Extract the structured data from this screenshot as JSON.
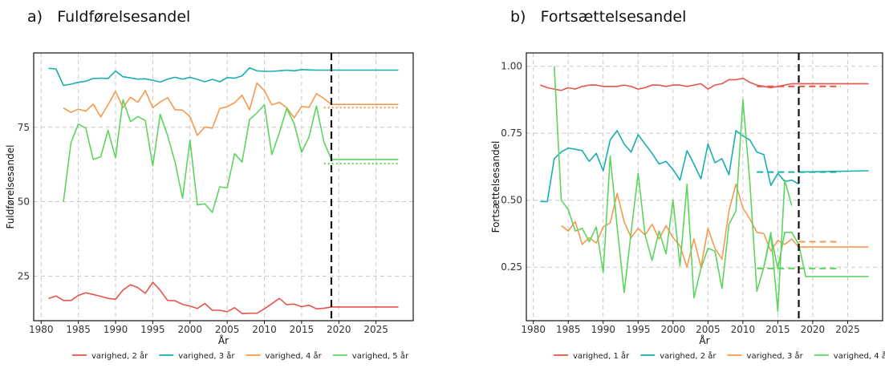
{
  "panels": {
    "a": {
      "label": "a)",
      "title": "Fuldførelsesandel"
    },
    "b": {
      "label": "b)",
      "title": "Fortsættelsesandel"
    }
  },
  "colors": {
    "red": "#e8534a",
    "teal": "#19aeb0",
    "orange": "#f59a4e",
    "green": "#5ed460",
    "grid": "#c8c8c8",
    "frame": "#111111"
  },
  "chart_data": [
    {
      "type": "line",
      "xlabel": "År",
      "ylabel": "Fuldførelsesandel",
      "xlim": [
        1979,
        2030
      ],
      "ylim": [
        10,
        100
      ],
      "xticks": [
        1980,
        1985,
        1990,
        1995,
        2000,
        2005,
        2010,
        2015,
        2020,
        2025
      ],
      "yticks": [
        25,
        50,
        75
      ],
      "ytick_labels": [
        "25",
        "50",
        "75"
      ],
      "vline_x": 2019,
      "series": [
        {
          "name": "varighed, 2 år",
          "color": "#e8534a",
          "x": [
            1981,
            1982,
            1983,
            1984,
            1985,
            1986,
            1987,
            1988,
            1989,
            1990,
            1991,
            1992,
            1993,
            1994,
            1995,
            1996,
            1997,
            1998,
            1999,
            2000,
            2001,
            2002,
            2003,
            2004,
            2005,
            2006,
            2007,
            2008,
            2009,
            2010,
            2011,
            2012,
            2013,
            2014,
            2015,
            2016,
            2017,
            2018,
            2019
          ],
          "y": [
            17.5,
            18.3,
            16.8,
            16.8,
            18.5,
            19.4,
            18.8,
            18.2,
            17.5,
            17.2,
            20.3,
            22.1,
            21.1,
            19.2,
            22.9,
            20.2,
            16.8,
            16.7,
            15.5,
            14.9,
            14.1,
            15.8,
            13.5,
            13.5,
            13.0,
            14.4,
            12.4,
            12.5,
            12.5,
            14.0,
            15.7,
            17.5,
            15.4,
            15.6,
            14.7,
            15.2,
            14.0,
            14.2,
            14.6
          ],
          "forecast": {
            "x": [
              2019,
              2028
            ],
            "y": [
              14.6,
              14.6
            ]
          }
        },
        {
          "name": "varighed, 3 år",
          "color": "#19aeb0",
          "x": [
            1981,
            1982,
            1983,
            1984,
            1985,
            1986,
            1987,
            1988,
            1989,
            1990,
            1991,
            1992,
            1993,
            1994,
            1995,
            1996,
            1997,
            1998,
            1999,
            2000,
            2001,
            2002,
            2003,
            2004,
            2005,
            2006,
            2007,
            2008,
            2009,
            2010,
            2011,
            2012,
            2013,
            2014,
            2015,
            2016,
            2017,
            2018,
            2019
          ],
          "y": [
            94.8,
            94.6,
            89.1,
            89.5,
            90.1,
            90.5,
            91.4,
            91.5,
            91.4,
            93.9,
            92.0,
            91.6,
            91.2,
            91.3,
            90.8,
            90.2,
            91.2,
            91.8,
            91.2,
            91.8,
            91.1,
            90.3,
            91.1,
            90.3,
            91.7,
            91.5,
            92.3,
            95.0,
            94.0,
            93.8,
            93.8,
            94.0,
            94.2,
            94.0,
            94.4,
            94.3,
            94.2,
            94.2,
            94.2
          ],
          "forecast": {
            "x": [
              2019,
              2028
            ],
            "y": [
              94.2,
              94.2
            ]
          }
        },
        {
          "name": "varighed, 4 år",
          "color": "#f59a4e",
          "x": [
            1983,
            1984,
            1985,
            1986,
            1987,
            1988,
            1989,
            1990,
            1991,
            1992,
            1993,
            1994,
            1995,
            1996,
            1997,
            1998,
            1999,
            2000,
            2001,
            2002,
            2003,
            2004,
            2005,
            2006,
            2007,
            2008,
            2009,
            2010,
            2011,
            2012,
            2013,
            2014,
            2015,
            2016,
            2017,
            2018,
            2019
          ],
          "y": [
            81.5,
            80.0,
            81.1,
            80.4,
            82.8,
            78.5,
            82.6,
            87.1,
            81.6,
            85.1,
            83.4,
            87.3,
            81.6,
            83.5,
            85.0,
            80.9,
            80.8,
            78.6,
            72.3,
            75.1,
            74.7,
            81.3,
            81.9,
            83.3,
            85.8,
            80.9,
            89.9,
            87.3,
            82.5,
            83.4,
            81.6,
            78.2,
            82.0,
            81.7,
            86.3,
            84.7,
            82.7
          ],
          "forecast": {
            "x": [
              2019,
              2028
            ],
            "y": [
              82.7,
              82.7
            ]
          },
          "alt": {
            "x": [
              2018,
              2028
            ],
            "y": [
              81.6,
              81.6
            ]
          }
        },
        {
          "name": "varighed, 5 år",
          "color": "#5ed460",
          "x": [
            1983,
            1984,
            1985,
            1986,
            1987,
            1988,
            1989,
            1990,
            1991,
            1992,
            1993,
            1994,
            1995,
            1996,
            1997,
            1998,
            1999,
            2000,
            2001,
            2002,
            2003,
            2004,
            2005,
            2006,
            2007,
            2008,
            2009,
            2010,
            2011,
            2012,
            2013,
            2014,
            2015,
            2016,
            2017,
            2018,
            2019
          ],
          "y": [
            50.0,
            69.8,
            76.1,
            74.7,
            64.2,
            65.1,
            74.0,
            64.7,
            84.3,
            76.9,
            78.6,
            77.3,
            62.1,
            79.3,
            72.2,
            63.3,
            51.2,
            70.7,
            48.9,
            49.3,
            46.4,
            55.0,
            54.6,
            66.1,
            63.3,
            77.6,
            79.8,
            82.6,
            65.8,
            73.1,
            81.3,
            76.3,
            66.6,
            71.8,
            82.2,
            70.1,
            64.2
          ],
          "forecast": {
            "x": [
              2019,
              2028
            ],
            "y": [
              64.2,
              64.2
            ]
          },
          "alt": {
            "x": [
              2018,
              2028
            ],
            "y": [
              62.8,
              62.8
            ]
          }
        }
      ]
    },
    {
      "type": "line",
      "xlabel": "År",
      "ylabel": "Fortsættelsesandel",
      "xlim": [
        1979,
        2030
      ],
      "ylim": [
        0.05,
        1.05
      ],
      "xticks": [
        1980,
        1985,
        1990,
        1995,
        2000,
        2005,
        2010,
        2015,
        2020,
        2025
      ],
      "yticks": [
        0.25,
        0.5,
        0.75,
        1.0
      ],
      "ytick_labels": [
        "0.25",
        "0.50",
        "0.75",
        "1.00"
      ],
      "vline_x": 2018,
      "series": [
        {
          "name": "varighed, 1 år",
          "color": "#e8534a",
          "x": [
            1981,
            1982,
            1983,
            1984,
            1985,
            1986,
            1987,
            1988,
            1989,
            1990,
            1991,
            1992,
            1993,
            1994,
            1995,
            1996,
            1997,
            1998,
            1999,
            2000,
            2001,
            2002,
            2003,
            2004,
            2005,
            2006,
            2007,
            2008,
            2009,
            2010,
            2011,
            2012,
            2013,
            2014,
            2015,
            2016,
            2017,
            2018
          ],
          "y": [
            0.93,
            0.92,
            0.915,
            0.91,
            0.92,
            0.915,
            0.925,
            0.93,
            0.93,
            0.925,
            0.925,
            0.925,
            0.93,
            0.925,
            0.915,
            0.92,
            0.93,
            0.93,
            0.925,
            0.93,
            0.93,
            0.925,
            0.93,
            0.935,
            0.915,
            0.93,
            0.935,
            0.95,
            0.95,
            0.955,
            0.94,
            0.93,
            0.925,
            0.92,
            0.925,
            0.93,
            0.935,
            0.935
          ],
          "forecast": {
            "x": [
              2018,
              2028
            ],
            "y": [
              0.935,
              0.935
            ]
          },
          "alt": {
            "x": [
              2012,
              2024
            ],
            "y": [
              0.925,
              0.925
            ]
          }
        },
        {
          "name": "varighed, 2 år",
          "color": "#19aeb0",
          "x": [
            1981,
            1982,
            1983,
            1984,
            1985,
            1986,
            1987,
            1988,
            1989,
            1990,
            1991,
            1992,
            1993,
            1994,
            1995,
            1996,
            1997,
            1998,
            1999,
            2000,
            2001,
            2002,
            2003,
            2004,
            2005,
            2006,
            2007,
            2008,
            2009,
            2010,
            2011,
            2012,
            2013,
            2014,
            2015,
            2016,
            2017,
            2018
          ],
          "y": [
            0.495,
            0.495,
            0.655,
            0.68,
            0.695,
            0.69,
            0.685,
            0.645,
            0.675,
            0.61,
            0.725,
            0.76,
            0.71,
            0.68,
            0.745,
            0.71,
            0.675,
            0.635,
            0.645,
            0.615,
            0.575,
            0.685,
            0.635,
            0.58,
            0.71,
            0.64,
            0.655,
            0.595,
            0.76,
            0.74,
            0.725,
            0.68,
            0.67,
            0.555,
            0.6,
            0.57,
            0.575,
            0.56
          ],
          "forecast": {
            "x": [
              2018,
              2028
            ],
            "y": [
              0.605,
              0.61
            ]
          },
          "alt": {
            "x": [
              2012,
              2024
            ],
            "y": [
              0.605,
              0.605
            ]
          }
        },
        {
          "name": "varighed, 3 år",
          "color": "#f59a4e",
          "x": [
            1984,
            1985,
            1986,
            1987,
            1988,
            1989,
            1990,
            1991,
            1992,
            1993,
            1994,
            1995,
            1996,
            1997,
            1998,
            1999,
            2000,
            2001,
            2002,
            2003,
            2004,
            2005,
            2006,
            2007,
            2008,
            2009,
            2010,
            2011,
            2012,
            2013,
            2014,
            2015,
            2016,
            2017,
            2018
          ],
          "y": [
            0.405,
            0.385,
            0.42,
            0.335,
            0.36,
            0.34,
            0.4,
            0.415,
            0.525,
            0.42,
            0.36,
            0.395,
            0.37,
            0.41,
            0.355,
            0.405,
            0.36,
            0.33,
            0.25,
            0.355,
            0.25,
            0.395,
            0.32,
            0.28,
            0.46,
            0.56,
            0.47,
            0.43,
            0.38,
            0.375,
            0.31,
            0.35,
            0.335,
            0.355,
            0.325
          ],
          "forecast": {
            "x": [
              2018,
              2028
            ],
            "y": [
              0.325,
              0.325
            ]
          },
          "alt": {
            "x": [
              2018,
              2024
            ],
            "y": [
              0.345,
              0.345
            ]
          }
        },
        {
          "name": "varighed, 4 år",
          "color": "#5ed460",
          "x": [
            1983,
            1984,
            1985,
            1986,
            1987,
            1988,
            1989,
            1990,
            1991,
            1992,
            1993,
            1994,
            1995,
            1996,
            1997,
            1998,
            1999,
            2000,
            2001,
            2002,
            2003,
            2004,
            2005,
            2006,
            2007,
            2008,
            2009,
            2010,
            2011,
            2012,
            2013,
            2014,
            2015,
            2016,
            2017,
            2018
          ],
          "y": [
            1.0,
            0.5,
            0.465,
            0.385,
            0.395,
            0.345,
            0.4,
            0.23,
            0.665,
            0.4,
            0.155,
            0.38,
            0.6,
            0.37,
            0.275,
            0.385,
            0.3,
            0.5,
            0.255,
            0.56,
            0.135,
            0.245,
            0.32,
            0.31,
            0.17,
            0.41,
            0.46,
            0.875,
            0.565,
            0.16,
            0.25,
            0.37,
            0.245,
            0.38,
            0.38,
            0.335
          ],
          "forecast": {
            "x": [
              2018,
              2019,
              2028
            ],
            "y": [
              0.335,
              0.215,
              0.215
            ]
          },
          "alt": {
            "x": [
              2012,
              2024
            ],
            "y": [
              0.245,
              0.245
            ]
          },
          "extra": {
            "x": [
              2013,
              2014,
              2015,
              2016,
              2017
            ],
            "y": [
              0.25,
              0.38,
              0.085,
              0.575,
              0.48
            ]
          }
        }
      ]
    }
  ]
}
